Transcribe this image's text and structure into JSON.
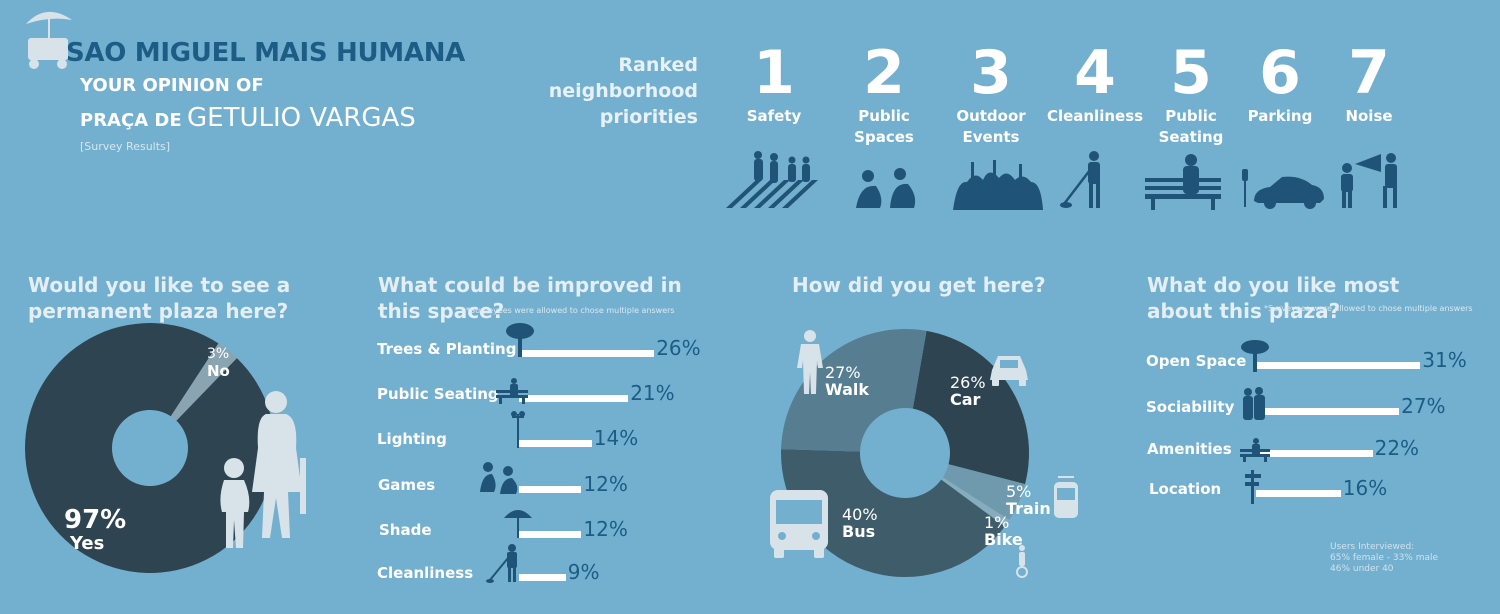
{
  "header": {
    "title": "SAO MIGUEL MAIS HUMANA",
    "subtitle_line1": "YOUR OPINION OF",
    "subtitle_line2_prefix": "PRAÇA DE",
    "subtitle_line2_name": "GETULIO VARGAS",
    "note": "[Survey Results]"
  },
  "priorities": {
    "heading": "Ranked neighborhood priorities",
    "items": [
      {
        "rank": "1",
        "label": "Safety"
      },
      {
        "rank": "2",
        "label": "Public Spaces"
      },
      {
        "rank": "3",
        "label": "Outdoor Events"
      },
      {
        "rank": "4",
        "label": "Cleanliness"
      },
      {
        "rank": "5",
        "label": "Public Seating"
      },
      {
        "rank": "6",
        "label": "Parking"
      },
      {
        "rank": "7",
        "label": "Noise"
      }
    ]
  },
  "colors": {
    "background": "#73b0cf",
    "dark_slate": "#2e4451",
    "mid_slate": "#3f5c6b",
    "light_slate": "#567d90",
    "accent_blue": "#1d5c85",
    "silhouette_pale": "#d7e3e9",
    "silhouette_dark": "#1f5378"
  },
  "chart_data": [
    {
      "type": "pie",
      "title": "Would you like to see a permanent plaza here?",
      "categories": [
        "Yes",
        "No"
      ],
      "values": [
        97,
        3
      ],
      "value_labels": [
        "97%",
        "3%"
      ]
    },
    {
      "type": "bar",
      "title": "What could be improved in this space?",
      "note": "*Surveyees were allowed to chose multiple answers",
      "categories": [
        "Trees & Planting",
        "Public Seating",
        "Lighting",
        "Games",
        "Shade",
        "Cleanliness"
      ],
      "values": [
        26,
        21,
        14,
        12,
        12,
        9
      ],
      "value_labels": [
        "26%",
        "21%",
        "14%",
        "12%",
        "12%",
        "9%"
      ]
    },
    {
      "type": "pie",
      "title": "How did you get here?",
      "categories": [
        "Car",
        "Train",
        "Bike",
        "Bus",
        "Walk"
      ],
      "values": [
        26,
        5,
        1,
        40,
        27
      ],
      "value_labels": [
        "26%",
        "5%",
        "1%",
        "40%",
        "27%"
      ]
    },
    {
      "type": "bar",
      "title": "What do you like most about this plaza?",
      "note": "*Surveyees were allowed to chose multiple answers",
      "categories": [
        "Open Space",
        "Sociability",
        "Amenities",
        "Location"
      ],
      "values": [
        31,
        27,
        22,
        16
      ],
      "value_labels": [
        "31%",
        "27%",
        "22%",
        "16%"
      ]
    }
  ],
  "footer_note": {
    "line1": "Users Interviewed:",
    "line2": "65% female - 33% male",
    "line3": "46% under 40"
  }
}
